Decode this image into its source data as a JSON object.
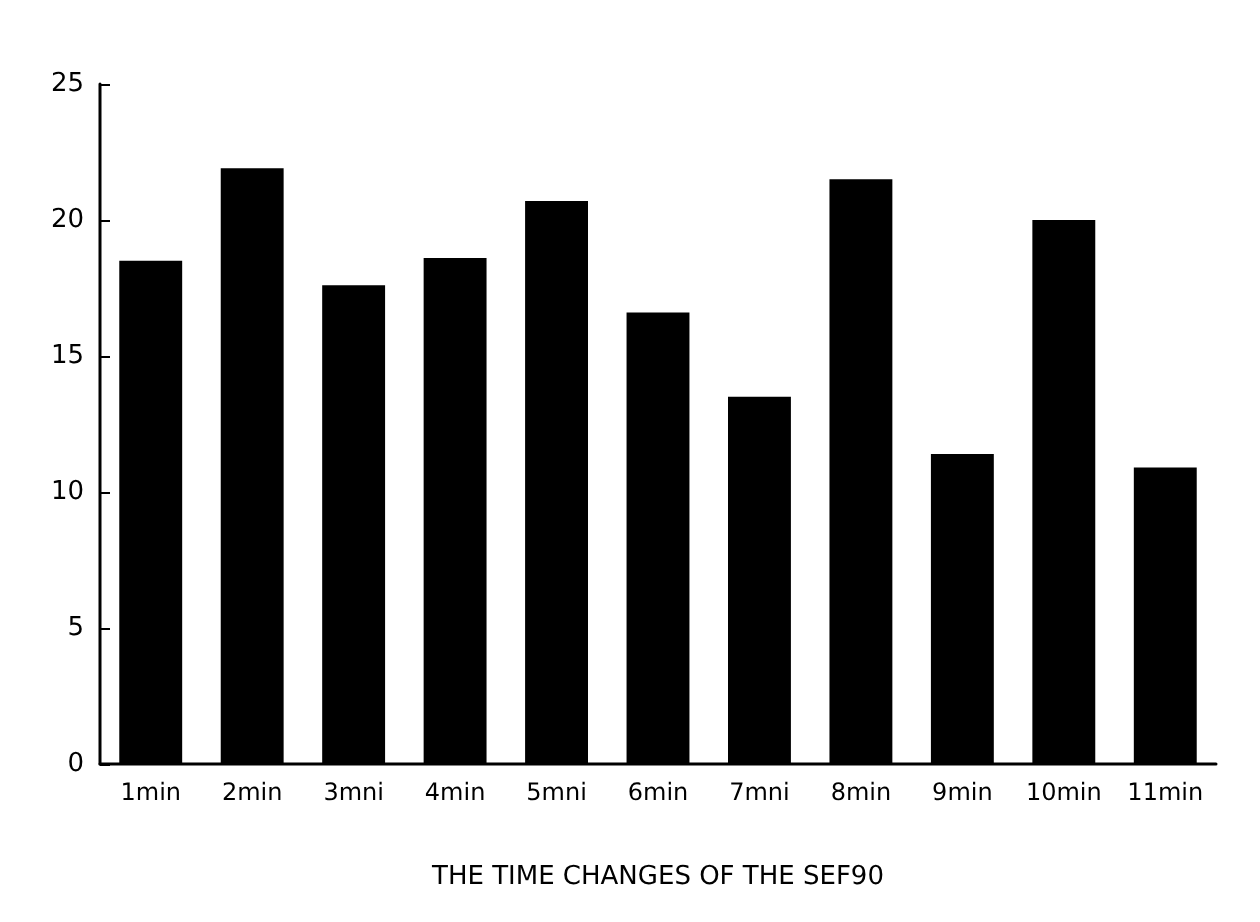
{
  "chart_data": {
    "type": "bar",
    "xlabel": "THE TIME CHANGES OF THE SEF90",
    "categories": [
      "1min",
      "2min",
      "3mni",
      "4min",
      "5mni",
      "6min",
      "7mni",
      "8min",
      "9min",
      "10min",
      "11min"
    ],
    "values": [
      18.5,
      21.9,
      17.6,
      18.6,
      20.7,
      16.6,
      13.5,
      21.5,
      11.4,
      20.0,
      10.9
    ],
    "color": "#000000",
    "ylim": [
      0,
      25
    ],
    "yticks": [
      0,
      5,
      10,
      15,
      20,
      25
    ],
    "grid": false
  }
}
